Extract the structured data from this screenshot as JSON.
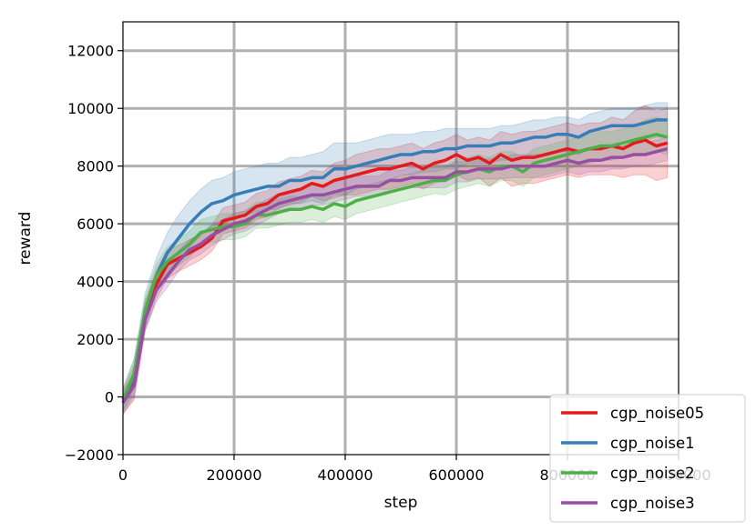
{
  "chart_data": {
    "type": "line",
    "xlabel": "step",
    "ylabel": "reward",
    "xlim": [
      0,
      1000000
    ],
    "ylim": [
      -2000,
      13000
    ],
    "xticks": [
      0,
      200000,
      400000,
      600000,
      800000,
      1000000
    ],
    "xtick_labels": [
      "0",
      "200000",
      "400000",
      "600000",
      "800000",
      "1000000"
    ],
    "yticks": [
      -2000,
      0,
      2000,
      4000,
      6000,
      8000,
      10000,
      12000
    ],
    "ytick_labels": [
      "−2000",
      "0",
      "2000",
      "4000",
      "6000",
      "8000",
      "10000",
      "12000"
    ],
    "grid": true,
    "legend_position": "lower-right",
    "series": [
      {
        "name": "cgp_noise05",
        "color": "#e41a1c",
        "x": [
          0,
          20000,
          40000,
          60000,
          80000,
          100000,
          120000,
          140000,
          160000,
          180000,
          200000,
          220000,
          240000,
          260000,
          280000,
          300000,
          320000,
          340000,
          360000,
          380000,
          400000,
          420000,
          440000,
          460000,
          480000,
          500000,
          520000,
          540000,
          560000,
          580000,
          600000,
          620000,
          640000,
          660000,
          680000,
          700000,
          720000,
          740000,
          760000,
          780000,
          800000,
          820000,
          840000,
          860000,
          880000,
          900000,
          920000,
          940000,
          960000,
          980000
        ],
        "y": [
          -200,
          500,
          2800,
          3900,
          4600,
          4800,
          5000,
          5200,
          5500,
          6100,
          6200,
          6300,
          6600,
          6700,
          7000,
          7100,
          7200,
          7400,
          7300,
          7500,
          7600,
          7700,
          7800,
          7900,
          7900,
          8000,
          8100,
          7900,
          8100,
          8200,
          8400,
          8200,
          8300,
          8100,
          8400,
          8200,
          8300,
          8300,
          8400,
          8500,
          8600,
          8500,
          8600,
          8600,
          8700,
          8600,
          8800,
          8900,
          8700,
          8800
        ],
        "band": [
          400,
          600,
          500,
          500,
          500,
          450,
          450,
          450,
          450,
          450,
          450,
          450,
          450,
          450,
          450,
          450,
          450,
          450,
          500,
          600,
          600,
          700,
          700,
          700,
          700,
          700,
          700,
          700,
          700,
          700,
          700,
          700,
          700,
          800,
          800,
          900,
          900,
          900,
          900,
          900,
          900,
          900,
          900,
          900,
          1000,
          1000,
          1100,
          1200,
          1200,
          1200
        ]
      },
      {
        "name": "cgp_noise1",
        "color": "#377eb8",
        "x": [
          0,
          20000,
          40000,
          60000,
          80000,
          100000,
          120000,
          140000,
          160000,
          180000,
          200000,
          220000,
          240000,
          260000,
          280000,
          300000,
          320000,
          340000,
          360000,
          380000,
          400000,
          420000,
          440000,
          460000,
          480000,
          500000,
          520000,
          540000,
          560000,
          580000,
          600000,
          620000,
          640000,
          660000,
          680000,
          700000,
          720000,
          740000,
          760000,
          780000,
          800000,
          820000,
          840000,
          860000,
          880000,
          900000,
          920000,
          940000,
          960000,
          980000
        ],
        "y": [
          -100,
          700,
          3000,
          4200,
          5000,
          5500,
          6000,
          6400,
          6700,
          6800,
          7000,
          7100,
          7200,
          7300,
          7300,
          7500,
          7500,
          7600,
          7600,
          7900,
          7900,
          8000,
          8100,
          8200,
          8300,
          8400,
          8400,
          8500,
          8500,
          8600,
          8600,
          8700,
          8700,
          8700,
          8800,
          8800,
          8900,
          9000,
          9000,
          9100,
          9100,
          9000,
          9200,
          9300,
          9400,
          9400,
          9400,
          9500,
          9600,
          9600
        ],
        "band": [
          400,
          600,
          600,
          600,
          700,
          800,
          800,
          800,
          800,
          800,
          800,
          800,
          800,
          800,
          800,
          800,
          800,
          800,
          900,
          900,
          900,
          800,
          800,
          800,
          800,
          700,
          700,
          700,
          700,
          700,
          700,
          600,
          600,
          600,
          600,
          600,
          600,
          600,
          600,
          600,
          600,
          600,
          600,
          600,
          600,
          600,
          600,
          600,
          600,
          600
        ]
      },
      {
        "name": "cgp_noise2",
        "color": "#4daf4a",
        "x": [
          0,
          20000,
          40000,
          60000,
          80000,
          100000,
          120000,
          140000,
          160000,
          180000,
          200000,
          220000,
          240000,
          260000,
          280000,
          300000,
          320000,
          340000,
          360000,
          380000,
          400000,
          420000,
          440000,
          460000,
          480000,
          500000,
          520000,
          540000,
          560000,
          580000,
          600000,
          620000,
          640000,
          660000,
          680000,
          700000,
          720000,
          740000,
          760000,
          780000,
          800000,
          820000,
          840000,
          860000,
          880000,
          900000,
          920000,
          940000,
          960000,
          980000
        ],
        "y": [
          -100,
          800,
          3000,
          4200,
          4700,
          5000,
          5300,
          5700,
          5800,
          5900,
          5900,
          6000,
          6300,
          6300,
          6400,
          6500,
          6500,
          6600,
          6500,
          6700,
          6600,
          6800,
          6900,
          7000,
          7100,
          7200,
          7300,
          7400,
          7500,
          7500,
          7700,
          7800,
          7900,
          7800,
          8000,
          8000,
          7800,
          8100,
          8200,
          8300,
          8400,
          8500,
          8600,
          8700,
          8700,
          8800,
          8900,
          9000,
          9100,
          9000
        ],
        "band": [
          400,
          500,
          400,
          400,
          500,
          450,
          450,
          450,
          450,
          450,
          450,
          450,
          450,
          450,
          450,
          450,
          450,
          450,
          450,
          450,
          450,
          450,
          450,
          450,
          450,
          450,
          450,
          450,
          450,
          500,
          500,
          500,
          500,
          500,
          500,
          500,
          500,
          500,
          500,
          500,
          500,
          500,
          500,
          500,
          500,
          500,
          500,
          600,
          600,
          600
        ]
      },
      {
        "name": "cgp_noise3",
        "color": "#984ea3",
        "x": [
          0,
          20000,
          40000,
          60000,
          80000,
          100000,
          120000,
          140000,
          160000,
          180000,
          200000,
          220000,
          240000,
          260000,
          280000,
          300000,
          320000,
          340000,
          360000,
          380000,
          400000,
          420000,
          440000,
          460000,
          480000,
          500000,
          520000,
          540000,
          560000,
          580000,
          600000,
          620000,
          640000,
          660000,
          680000,
          700000,
          720000,
          740000,
          760000,
          780000,
          800000,
          820000,
          840000,
          860000,
          880000,
          900000,
          920000,
          940000,
          960000,
          980000
        ],
        "y": [
          -200,
          400,
          2700,
          3700,
          4200,
          4700,
          5100,
          5300,
          5600,
          5800,
          6000,
          6100,
          6300,
          6500,
          6700,
          6800,
          6900,
          7000,
          7000,
          7100,
          7200,
          7300,
          7300,
          7300,
          7500,
          7500,
          7600,
          7600,
          7600,
          7600,
          7800,
          7800,
          7900,
          7900,
          7900,
          8000,
          8000,
          8000,
          8000,
          8100,
          8200,
          8100,
          8200,
          8200,
          8300,
          8300,
          8400,
          8400,
          8500,
          8600
        ],
        "band": [
          400,
          400,
          400,
          400,
          400,
          350,
          350,
          350,
          350,
          350,
          350,
          350,
          350,
          350,
          350,
          350,
          350,
          350,
          350,
          350,
          350,
          350,
          350,
          350,
          350,
          350,
          350,
          350,
          350,
          350,
          350,
          350,
          350,
          350,
          350,
          400,
          400,
          400,
          400,
          400,
          400,
          400,
          400,
          400,
          400,
          400,
          400,
          400,
          400,
          400
        ]
      }
    ]
  }
}
